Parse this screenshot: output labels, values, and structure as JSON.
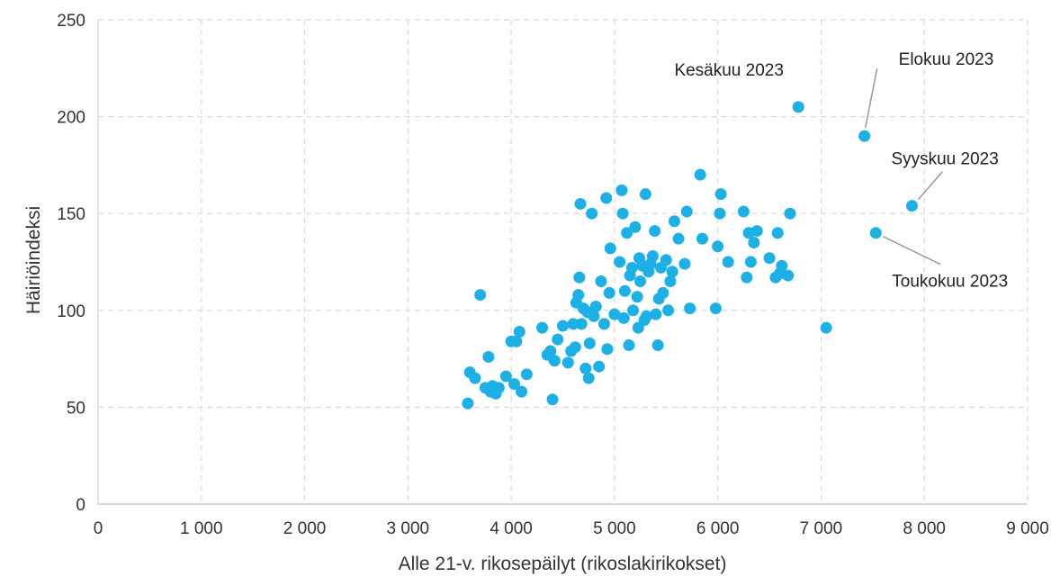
{
  "chart_data": {
    "type": "scatter",
    "title": "",
    "xlabel": "Alle 21-v. rikosepäilyt (rikoslakirikokset)",
    "ylabel": "Häiriöindeksi",
    "xlim": [
      0,
      9000
    ],
    "ylim": [
      0,
      250
    ],
    "x_ticks": [
      0,
      1000,
      2000,
      3000,
      4000,
      5000,
      6000,
      7000,
      8000,
      9000
    ],
    "x_tick_labels": [
      "0",
      "1 000",
      "2 000",
      "3 000",
      "4 000",
      "5 000",
      "6 000",
      "7 000",
      "8 000",
      "9 000"
    ],
    "y_ticks": [
      0,
      50,
      100,
      150,
      200,
      250
    ],
    "y_tick_labels": [
      "0",
      "50",
      "100",
      "150",
      "200",
      "250"
    ],
    "grid": true,
    "grid_style": "dashed",
    "legend": "none",
    "point_color": "#1cb0e6",
    "leader_line_color": "#999999",
    "grid_color": "#d9d9d9",
    "points": [
      [
        3580,
        52
      ],
      [
        3600,
        68
      ],
      [
        3650,
        65
      ],
      [
        3700,
        108
      ],
      [
        3750,
        60
      ],
      [
        3780,
        76
      ],
      [
        3800,
        58
      ],
      [
        3820,
        61
      ],
      [
        3850,
        57
      ],
      [
        3880,
        60
      ],
      [
        3950,
        66
      ],
      [
        4000,
        84
      ],
      [
        4030,
        62
      ],
      [
        4050,
        84
      ],
      [
        4080,
        89
      ],
      [
        4100,
        58
      ],
      [
        4150,
        67
      ],
      [
        4300,
        91
      ],
      [
        4350,
        77
      ],
      [
        4380,
        79
      ],
      [
        4400,
        54
      ],
      [
        4420,
        74
      ],
      [
        4450,
        85
      ],
      [
        4500,
        92
      ],
      [
        4550,
        73
      ],
      [
        4580,
        79
      ],
      [
        4600,
        93
      ],
      [
        4620,
        81
      ],
      [
        4630,
        104
      ],
      [
        4650,
        108
      ],
      [
        4660,
        117
      ],
      [
        4670,
        155
      ],
      [
        4680,
        93
      ],
      [
        4700,
        101
      ],
      [
        4720,
        70
      ],
      [
        4740,
        99
      ],
      [
        4750,
        65
      ],
      [
        4760,
        83
      ],
      [
        4780,
        150
      ],
      [
        4800,
        97
      ],
      [
        4820,
        102
      ],
      [
        4850,
        71
      ],
      [
        4870,
        115
      ],
      [
        4900,
        93
      ],
      [
        4920,
        158
      ],
      [
        4930,
        80
      ],
      [
        4950,
        109
      ],
      [
        4960,
        132
      ],
      [
        5000,
        98
      ],
      [
        5050,
        125
      ],
      [
        5070,
        162
      ],
      [
        5080,
        150
      ],
      [
        5090,
        96
      ],
      [
        5100,
        110
      ],
      [
        5120,
        140
      ],
      [
        5140,
        82
      ],
      [
        5150,
        118
      ],
      [
        5170,
        122
      ],
      [
        5180,
        100
      ],
      [
        5200,
        143
      ],
      [
        5220,
        107
      ],
      [
        5230,
        91
      ],
      [
        5240,
        127
      ],
      [
        5250,
        115
      ],
      [
        5270,
        123
      ],
      [
        5290,
        95
      ],
      [
        5300,
        160
      ],
      [
        5310,
        97
      ],
      [
        5330,
        120
      ],
      [
        5350,
        124
      ],
      [
        5370,
        128
      ],
      [
        5390,
        141
      ],
      [
        5400,
        98
      ],
      [
        5420,
        82
      ],
      [
        5430,
        106
      ],
      [
        5450,
        122
      ],
      [
        5470,
        109
      ],
      [
        5500,
        126
      ],
      [
        5520,
        100
      ],
      [
        5540,
        115
      ],
      [
        5560,
        120
      ],
      [
        5580,
        146
      ],
      [
        5620,
        137
      ],
      [
        5680,
        124
      ],
      [
        5700,
        151
      ],
      [
        5730,
        101
      ],
      [
        5830,
        170
      ],
      [
        5850,
        137
      ],
      [
        5980,
        101
      ],
      [
        6000,
        133
      ],
      [
        6020,
        150
      ],
      [
        6030,
        160
      ],
      [
        6100,
        125
      ],
      [
        6250,
        151
      ],
      [
        6280,
        117
      ],
      [
        6300,
        140
      ],
      [
        6320,
        125
      ],
      [
        6350,
        135
      ],
      [
        6380,
        141
      ],
      [
        6500,
        127
      ],
      [
        6560,
        117
      ],
      [
        6580,
        140
      ],
      [
        6600,
        119
      ],
      [
        6620,
        123
      ],
      [
        6680,
        118
      ],
      [
        6700,
        150
      ],
      [
        6780,
        205
      ],
      [
        7050,
        91
      ],
      [
        7420,
        190
      ],
      [
        7530,
        140
      ],
      [
        7880,
        154
      ]
    ],
    "annotations": [
      {
        "label": "Kesäkuu 2023",
        "x": 6780,
        "y": 205
      },
      {
        "label": "Elokuu 2023",
        "x": 7420,
        "y": 190
      },
      {
        "label": "Syyskuu 2023",
        "x": 7880,
        "y": 154
      },
      {
        "label": "Toukokuu 2023",
        "x": 7530,
        "y": 140
      }
    ]
  }
}
